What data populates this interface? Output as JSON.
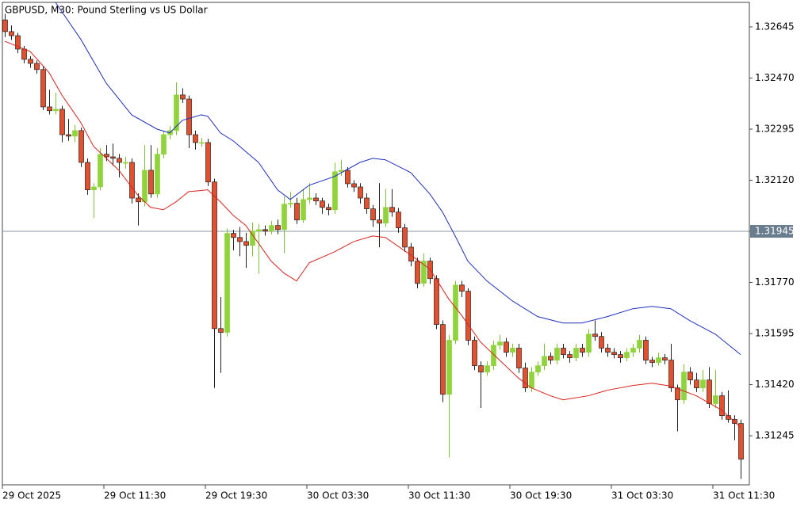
{
  "chart_data": {
    "type": "candlestick",
    "title": "GBPUSD, M30:  Pound Sterling vs US Dollar",
    "up_color": "#8fd43a",
    "down_color": "#e4502e",
    "ylim": [
      1.31077,
      1.32729
    ],
    "yticks": [
      1.32645,
      {
        "value": 1.3247,
        "label": "1.32470"
      },
      1.32295,
      {
        "value": 1.3212,
        "label": "1.32120"
      },
      1.31945,
      {
        "value": 1.3177,
        "label": "1.31770"
      },
      1.31595,
      {
        "value": 1.3142,
        "label": "1.31420"
      },
      1.31245
    ],
    "price_line": 1.31945,
    "xtick_labels": [
      "29 Oct 2025",
      "29 Oct 11:30",
      "29 Oct 19:30",
      "30 Oct 03:30",
      "30 Oct 11:30",
      "30 Oct 19:30",
      "31 Oct 03:30",
      "31 Oct 11:30"
    ],
    "ohlc": [
      [
        1.32669,
        1.3269,
        1.3261,
        1.32629
      ],
      [
        1.32629,
        1.3265,
        1.326,
        1.32615
      ],
      [
        1.32615,
        1.32625,
        1.32555,
        1.32569
      ],
      [
        1.32569,
        1.3258,
        1.3252,
        1.32534
      ],
      [
        1.32534,
        1.32545,
        1.32505,
        1.3252
      ],
      [
        1.3252,
        1.3253,
        1.32485,
        1.32499
      ],
      [
        1.32499,
        1.3251,
        1.3236,
        1.32371
      ],
      [
        1.32371,
        1.3243,
        1.32345,
        1.32358
      ],
      [
        1.32358,
        1.3242,
        1.32345,
        1.32363
      ],
      [
        1.32363,
        1.32375,
        1.3225,
        1.32276
      ],
      [
        1.32276,
        1.3233,
        1.32255,
        1.32271
      ],
      [
        1.32271,
        1.3231,
        1.3225,
        1.3229
      ],
      [
        1.3229,
        1.323,
        1.32165,
        1.32181
      ],
      [
        1.32181,
        1.32195,
        1.3207,
        1.32087
      ],
      [
        1.32087,
        1.3211,
        1.3199,
        1.32097
      ],
      [
        1.32097,
        1.3223,
        1.32085,
        1.32209
      ],
      [
        1.32209,
        1.3224,
        1.32185,
        1.322
      ],
      [
        1.322,
        1.32245,
        1.3217,
        1.32195
      ],
      [
        1.32195,
        1.3221,
        1.3213,
        1.32181
      ],
      [
        1.32181,
        1.322,
        1.3216,
        1.32181
      ],
      [
        1.32181,
        1.32195,
        1.3204,
        1.32059
      ],
      [
        1.32059,
        1.32075,
        1.31965,
        1.32046
      ],
      [
        1.32046,
        1.3224,
        1.3203,
        1.32154
      ],
      [
        1.32154,
        1.3224,
        1.3206,
        1.32073
      ],
      [
        1.32073,
        1.3223,
        1.3206,
        1.32209
      ],
      [
        1.32209,
        1.3229,
        1.32195,
        1.32276
      ],
      [
        1.32276,
        1.32305,
        1.3226,
        1.3229
      ],
      [
        1.3229,
        1.32455,
        1.32275,
        1.32412
      ],
      [
        1.32412,
        1.32435,
        1.32385,
        1.32398
      ],
      [
        1.32398,
        1.3241,
        1.3223,
        1.32276
      ],
      [
        1.32276,
        1.3229,
        1.32225,
        1.32249
      ],
      [
        1.32249,
        1.32265,
        1.32235,
        1.32249
      ],
      [
        1.32249,
        1.32262,
        1.321,
        1.32114
      ],
      [
        1.32114,
        1.32125,
        1.31409,
        1.31612
      ],
      [
        1.31612,
        1.3172,
        1.3146,
        1.31599
      ],
      [
        1.31599,
        1.31955,
        1.31585,
        1.31938
      ],
      [
        1.31938,
        1.3195,
        1.3188,
        1.31924
      ],
      [
        1.31924,
        1.3196,
        1.3186,
        1.3191
      ],
      [
        1.3191,
        1.3194,
        1.3182,
        1.31897
      ],
      [
        1.31897,
        1.31975,
        1.3186,
        1.31946
      ],
      [
        1.31946,
        1.3197,
        1.318,
        1.31951
      ],
      [
        1.31951,
        1.31965,
        1.3193,
        1.31946
      ],
      [
        1.31946,
        1.3198,
        1.31935,
        1.31965
      ],
      [
        1.31965,
        1.31985,
        1.31935,
        1.31951
      ],
      [
        1.31951,
        1.32065,
        1.3187,
        1.32038
      ],
      [
        1.32038,
        1.3208,
        1.32025,
        1.32041
      ],
      [
        1.32041,
        1.3206,
        1.3197,
        1.31984
      ],
      [
        1.31984,
        1.3209,
        1.31975,
        1.32054
      ],
      [
        1.32054,
        1.3211,
        1.3204,
        1.32059
      ],
      [
        1.32059,
        1.32075,
        1.32035,
        1.32049
      ],
      [
        1.32049,
        1.3206,
        1.32005,
        1.32027
      ],
      [
        1.32027,
        1.3204,
        1.32,
        1.32019
      ],
      [
        1.32019,
        1.3218,
        1.32005,
        1.32149
      ],
      [
        1.32149,
        1.3219,
        1.32135,
        1.32154
      ],
      [
        1.32154,
        1.32165,
        1.32095,
        1.32108
      ],
      [
        1.32108,
        1.3212,
        1.3208,
        1.32097
      ],
      [
        1.32097,
        1.3211,
        1.3204,
        1.32059
      ],
      [
        1.32059,
        1.32075,
        1.32005,
        1.32022
      ],
      [
        1.32022,
        1.32035,
        1.3196,
        1.31984
      ],
      [
        1.31984,
        1.3211,
        1.3189,
        1.31973
      ],
      [
        1.31973,
        1.3209,
        1.3196,
        1.32027
      ],
      [
        1.32027,
        1.3209,
        1.31995,
        1.32011
      ],
      [
        1.32011,
        1.32025,
        1.3194,
        1.31957
      ],
      [
        1.31957,
        1.3197,
        1.31875,
        1.31891
      ],
      [
        1.31891,
        1.31905,
        1.31825,
        1.31843
      ],
      [
        1.31843,
        1.31855,
        1.3175,
        1.31767
      ],
      [
        1.31767,
        1.3187,
        1.31755,
        1.31843
      ],
      [
        1.31843,
        1.31855,
        1.31765,
        1.31783
      ],
      [
        1.31783,
        1.31795,
        1.3161,
        1.31626
      ],
      [
        1.31626,
        1.3164,
        1.3136,
        1.31387
      ],
      [
        1.31387,
        1.3159,
        1.31171,
        1.31572
      ],
      [
        1.31572,
        1.31775,
        1.3156,
        1.31761
      ],
      [
        1.31761,
        1.31775,
        1.3172,
        1.3174
      ],
      [
        1.3174,
        1.3175,
        1.31555,
        1.31572
      ],
      [
        1.31572,
        1.31585,
        1.3147,
        1.31485
      ],
      [
        1.31485,
        1.315,
        1.3134,
        1.31463
      ],
      [
        1.31463,
        1.315,
        1.3145,
        1.31485
      ],
      [
        1.31485,
        1.3157,
        1.3147,
        1.31555
      ],
      [
        1.31555,
        1.3159,
        1.3154,
        1.31566
      ],
      [
        1.31566,
        1.3158,
        1.31515,
        1.31531
      ],
      [
        1.31531,
        1.3156,
        1.31515,
        1.31545
      ],
      [
        1.31545,
        1.3156,
        1.3146,
        1.31477
      ],
      [
        1.31477,
        1.31495,
        1.31395,
        1.31409
      ],
      [
        1.31409,
        1.3148,
        1.31395,
        1.31463
      ],
      [
        1.31463,
        1.315,
        1.3145,
        1.31485
      ],
      [
        1.31485,
        1.3156,
        1.3147,
        1.31517
      ],
      [
        1.31517,
        1.3153,
        1.3149,
        1.31504
      ],
      [
        1.31504,
        1.3156,
        1.3149,
        1.31545
      ],
      [
        1.31545,
        1.3156,
        1.3151,
        1.31523
      ],
      [
        1.31523,
        1.31535,
        1.31495,
        1.31512
      ],
      [
        1.31512,
        1.3156,
        1.315,
        1.31545
      ],
      [
        1.31545,
        1.3156,
        1.31515,
        1.31531
      ],
      [
        1.31531,
        1.3161,
        1.31515,
        1.31593
      ],
      [
        1.31593,
        1.3164,
        1.3157,
        1.31585
      ],
      [
        1.31585,
        1.316,
        1.3153,
        1.31545
      ],
      [
        1.31545,
        1.3156,
        1.31515,
        1.31531
      ],
      [
        1.31531,
        1.31545,
        1.3151,
        1.31523
      ],
      [
        1.31523,
        1.31535,
        1.31495,
        1.31512
      ],
      [
        1.31512,
        1.31545,
        1.315,
        1.31531
      ],
      [
        1.31531,
        1.3156,
        1.31515,
        1.31545
      ],
      [
        1.31545,
        1.3159,
        1.3153,
        1.31572
      ],
      [
        1.31572,
        1.31585,
        1.3149,
        1.31504
      ],
      [
        1.31504,
        1.31515,
        1.3148,
        1.31496
      ],
      [
        1.31496,
        1.3153,
        1.31485,
        1.31512
      ],
      [
        1.31512,
        1.31525,
        1.3149,
        1.31504
      ],
      [
        1.31504,
        1.3156,
        1.31395,
        1.31409
      ],
      [
        1.31409,
        1.3142,
        1.3126,
        1.31368
      ],
      [
        1.31368,
        1.3149,
        1.31355,
        1.31463
      ],
      [
        1.31463,
        1.3148,
        1.3142,
        1.31436
      ],
      [
        1.31436,
        1.3146,
        1.31395,
        1.31409
      ],
      [
        1.31409,
        1.3147,
        1.31395,
        1.31436
      ],
      [
        1.31436,
        1.3148,
        1.3134,
        1.31355
      ],
      [
        1.31355,
        1.3147,
        1.3134,
        1.31382
      ],
      [
        1.31382,
        1.31395,
        1.313,
        1.31314
      ],
      [
        1.31314,
        1.314,
        1.3129,
        1.31301
      ],
      [
        1.31301,
        1.31315,
        1.3123,
        1.31287
      ],
      [
        1.31287,
        1.313,
        1.31097,
        1.31165
      ]
    ],
    "lines": [
      {
        "color": "#1f2fbf",
        "x": [
          8,
          12,
          16,
          20,
          24,
          26,
          28,
          31,
          32,
          34,
          36,
          40,
          43,
          45,
          48,
          52,
          56,
          58,
          60,
          64,
          67,
          69,
          71,
          73,
          76,
          80,
          84,
          88,
          91,
          95,
          99,
          102,
          105,
          108,
          112,
          116
        ],
        "values": [
          1.32729,
          1.32602,
          1.32452,
          1.32344,
          1.32295,
          1.32282,
          1.32325,
          1.32344,
          1.32339,
          1.32282,
          1.32255,
          1.32181,
          1.32087,
          1.32054,
          1.32103,
          1.32133,
          1.32181,
          1.32195,
          1.3219,
          1.32146,
          1.32073,
          1.32011,
          1.31929,
          1.31843,
          1.31775,
          1.31707,
          1.31653,
          1.31631,
          1.31631,
          1.31653,
          1.3168,
          1.31688,
          1.3168,
          1.31639,
          1.31593,
          1.31523
        ]
      },
      {
        "color": "#d8231e",
        "x": [
          0,
          4,
          7,
          9,
          12,
          14,
          18,
          21,
          23,
          25,
          27,
          29,
          32,
          34,
          36,
          38,
          42,
          44,
          46,
          48,
          52,
          55,
          58,
          60,
          64,
          67,
          70,
          72,
          75,
          78,
          81,
          83,
          86,
          88,
          92,
          95,
          99,
          102,
          105,
          109,
          113,
          116
        ],
        "values": [
          1.32596,
          1.32561,
          1.32488,
          1.32412,
          1.32317,
          1.32236,
          1.32154,
          1.32068,
          1.32027,
          1.32019,
          1.32046,
          1.32081,
          1.32087,
          1.32046,
          1.32,
          1.31965,
          1.31843,
          1.31802,
          1.31775,
          1.31837,
          1.31875,
          1.3191,
          1.31929,
          1.31924,
          1.31864,
          1.31816,
          1.31713,
          1.31658,
          1.31566,
          1.31504,
          1.31442,
          1.31409,
          1.31382,
          1.31368,
          1.31382,
          1.31401,
          1.31417,
          1.31425,
          1.31415,
          1.31382,
          1.31333,
          1.31274
        ]
      }
    ]
  }
}
